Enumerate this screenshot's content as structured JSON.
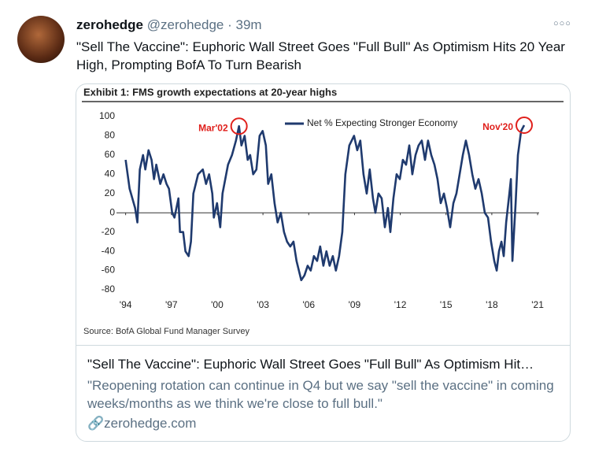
{
  "tweet": {
    "name": "zerohedge",
    "handle": "@zerohedge",
    "separator": "·",
    "time": "39m",
    "text": "\"Sell The Vaccine\": Euphoric Wall Street Goes \"Full Bull\" As Optimism Hits 20 Year High, Prompting BofA To Turn Bearish"
  },
  "card": {
    "title": "\"Sell The Vaccine\": Euphoric Wall Street Goes \"Full Bull\" As Optimism Hit…",
    "description": "\"Reopening rotation can continue in Q4 but we say \"sell the vaccine\" in coming weeks/months as we think we're close to full bull.\"",
    "domain": "zerohedge.com"
  },
  "chart_data": {
    "type": "line",
    "title": "Exhibit 1: FMS growth expectations at 20-year highs",
    "source": "Source: BofA Global Fund Manager Survey",
    "x": [
      1994.0,
      1994.26,
      1994.62,
      1994.77,
      1994.93,
      1995.14,
      1995.29,
      1995.5,
      1995.7,
      1995.86,
      1996.01,
      1996.27,
      1996.48,
      1996.68,
      1996.84,
      1997.05,
      1997.2,
      1997.46,
      1997.56,
      1997.77,
      1997.92,
      1998.13,
      1998.28,
      1998.44,
      1998.75,
      1999.06,
      1999.27,
      1999.47,
      1999.68,
      1999.78,
      1999.99,
      2000.2,
      2000.35,
      2000.71,
      2000.97,
      2001.23,
      2001.43,
      2001.59,
      2001.8,
      2002.0,
      2002.16,
      2002.36,
      2002.57,
      2002.78,
      2002.98,
      2003.19,
      2003.34,
      2003.55,
      2003.76,
      2003.96,
      2004.17,
      2004.38,
      2004.58,
      2004.79,
      2005.0,
      2005.2,
      2005.51,
      2005.72,
      2005.93,
      2006.13,
      2006.34,
      2006.55,
      2006.75,
      2006.96,
      2007.16,
      2007.37,
      2007.58,
      2007.78,
      2007.99,
      2008.2,
      2008.4,
      2008.66,
      2008.97,
      2009.18,
      2009.38,
      2009.59,
      2009.8,
      2010.0,
      2010.21,
      2010.37,
      2010.57,
      2010.78,
      2010.99,
      2011.19,
      2011.35,
      2011.55,
      2011.76,
      2011.97,
      2012.17,
      2012.38,
      2012.59,
      2012.79,
      2013.0,
      2013.2,
      2013.41,
      2013.62,
      2013.82,
      2014.03,
      2014.24,
      2014.44,
      2014.65,
      2014.86,
      2015.06,
      2015.27,
      2015.48,
      2015.68,
      2015.89,
      2016.1,
      2016.3,
      2016.51,
      2016.72,
      2016.92,
      2017.13,
      2017.34,
      2017.54,
      2017.75,
      2017.95,
      2018.16,
      2018.32,
      2018.47,
      2018.63,
      2018.78,
      2018.94,
      2019.15,
      2019.25,
      2019.35,
      2019.56,
      2019.71,
      2019.92,
      2020.12
    ],
    "series": [
      {
        "name": "Net % Expecting Stronger Economy",
        "color": "#1f3a6e",
        "values": [
          55,
          25,
          5,
          -10,
          45,
          60,
          45,
          65,
          55,
          35,
          50,
          30,
          40,
          30,
          25,
          0,
          -5,
          15,
          -20,
          -20,
          -40,
          -45,
          -30,
          20,
          40,
          45,
          30,
          40,
          20,
          -5,
          10,
          -15,
          20,
          50,
          60,
          75,
          90,
          70,
          80,
          55,
          60,
          40,
          45,
          80,
          85,
          70,
          30,
          40,
          10,
          -10,
          0,
          -20,
          -30,
          -35,
          -30,
          -50,
          -70,
          -65,
          -55,
          -60,
          -45,
          -50,
          -35,
          -55,
          -40,
          -55,
          -45,
          -60,
          -45,
          -20,
          40,
          70,
          80,
          65,
          75,
          40,
          20,
          45,
          15,
          0,
          20,
          15,
          -15,
          5,
          -20,
          15,
          40,
          35,
          55,
          50,
          70,
          40,
          60,
          70,
          75,
          55,
          75,
          60,
          50,
          35,
          10,
          20,
          5,
          -15,
          10,
          20,
          40,
          60,
          75,
          60,
          40,
          25,
          35,
          20,
          0,
          -5,
          -30,
          -50,
          -60,
          -40,
          -30,
          -45,
          -10,
          20,
          35,
          -50,
          10,
          60,
          85,
          91
        ]
      }
    ],
    "xlim": [
      1993.4,
      2021.1
    ],
    "xticks": [
      {
        "value": 1994,
        "label": "'94"
      },
      {
        "value": 1997,
        "label": "'97"
      },
      {
        "value": 2000,
        "label": "'00"
      },
      {
        "value": 2003,
        "label": "'03"
      },
      {
        "value": 2006,
        "label": "'06"
      },
      {
        "value": 2009,
        "label": "'09"
      },
      {
        "value": 2012,
        "label": "'12"
      },
      {
        "value": 2015,
        "label": "'15"
      },
      {
        "value": 2018,
        "label": "'18"
      },
      {
        "value": 2021,
        "label": "'21"
      }
    ],
    "ylim": [
      -80,
      100
    ],
    "yticks": [
      -80,
      -60,
      -40,
      -20,
      0,
      20,
      40,
      60,
      80,
      100
    ],
    "annotations": [
      {
        "text": "Mar'02",
        "x": 2001.43,
        "y": 90,
        "color": "#e0201c"
      },
      {
        "text": "Nov'20",
        "x": 2020.12,
        "y": 91,
        "color": "#e0201c"
      }
    ]
  }
}
